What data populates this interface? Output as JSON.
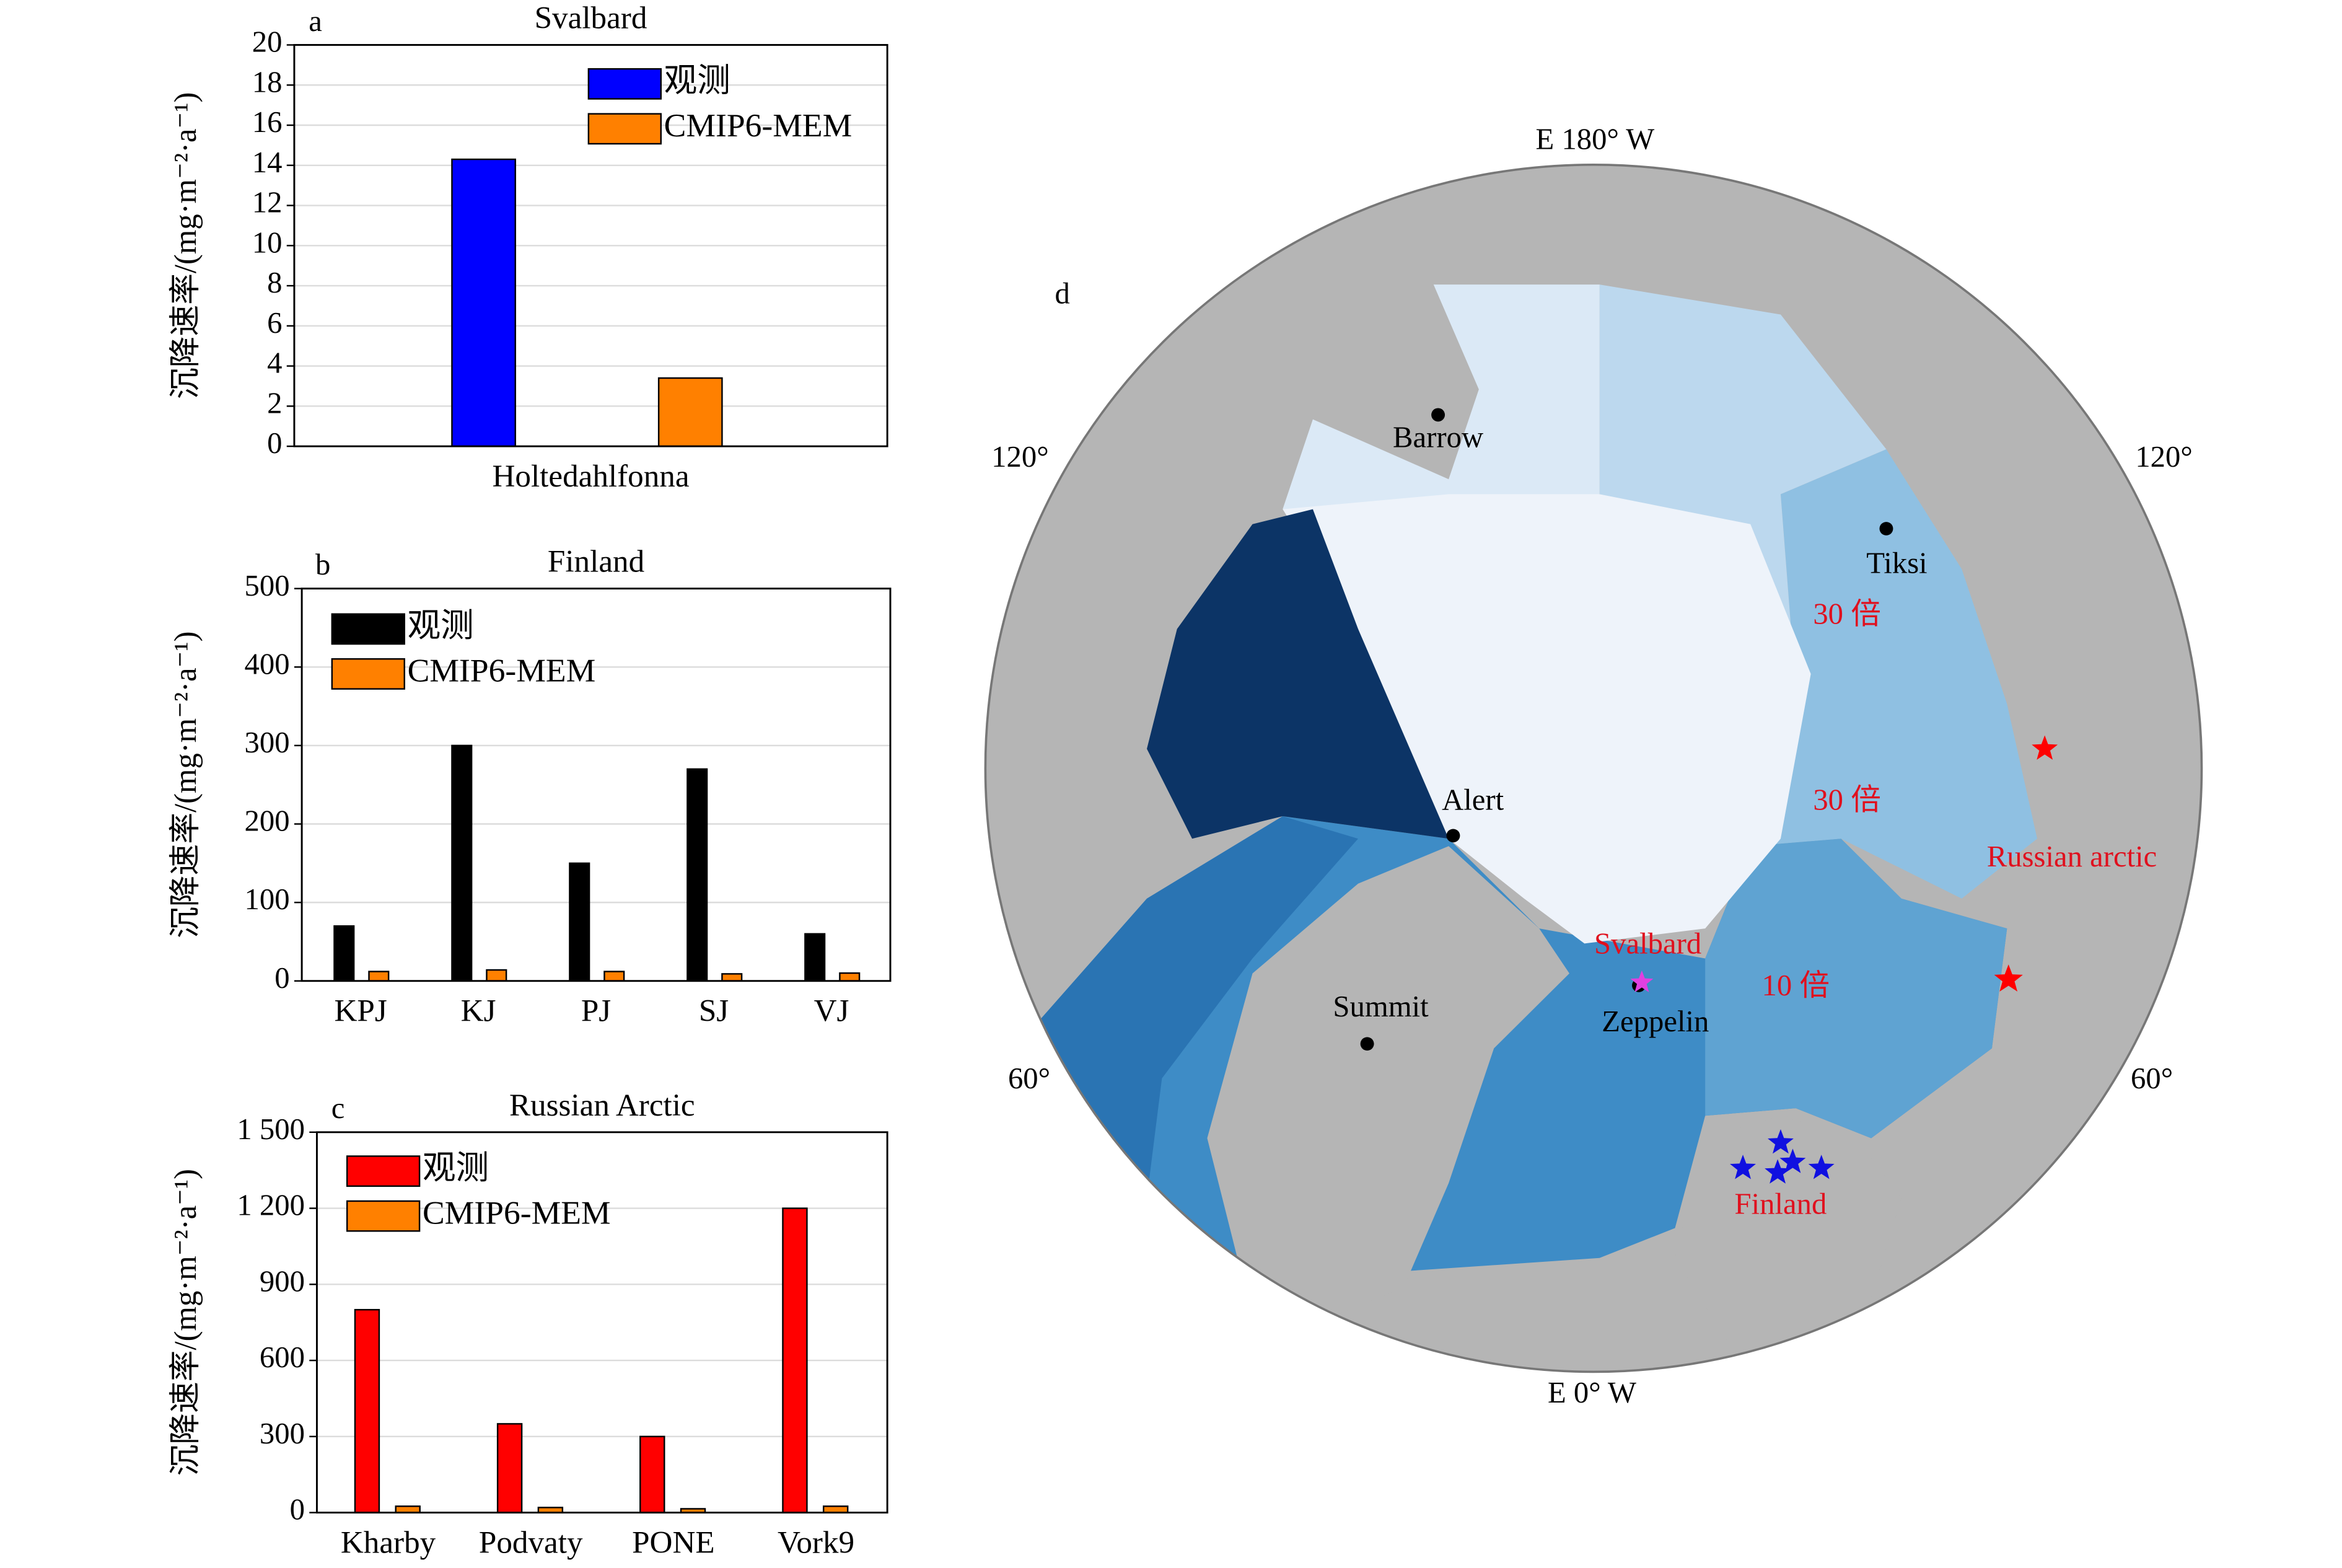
{
  "chart_data": [
    {
      "type": "bar",
      "panel": "a",
      "title": "Svalbard",
      "ylabel": "沉降速率/(mg·m⁻²·a⁻¹)",
      "categories": [
        "Holtedahlfonna"
      ],
      "series": [
        {
          "name": "观测",
          "color": "#0000ff",
          "values": [
            14.3
          ]
        },
        {
          "name": "CMIP6-MEM",
          "color": "#ff8000",
          "values": [
            3.4
          ]
        }
      ],
      "ylim": [
        0,
        20
      ],
      "yticks": [
        0,
        2,
        4,
        6,
        8,
        10,
        12,
        14,
        16,
        18,
        20
      ],
      "grid": true
    },
    {
      "type": "bar",
      "panel": "b",
      "title": "Finland",
      "ylabel": "沉降速率/(mg·m⁻²·a⁻¹)",
      "categories": [
        "KPJ",
        "KJ",
        "PJ",
        "SJ",
        "VJ"
      ],
      "series": [
        {
          "name": "观测",
          "color": "#000000",
          "values": [
            70,
            300,
            150,
            270,
            60
          ]
        },
        {
          "name": "CMIP6-MEM",
          "color": "#ff8000",
          "values": [
            12,
            14,
            12,
            9,
            10
          ]
        }
      ],
      "ylim": [
        0,
        500
      ],
      "yticks": [
        0,
        100,
        200,
        300,
        400,
        500
      ],
      "grid": true
    },
    {
      "type": "bar",
      "panel": "c",
      "title": "Russian Arctic",
      "ylabel": "沉降速率/(mg·m⁻²·a⁻¹)",
      "categories": [
        "Kharby",
        "Podvaty",
        "PONE",
        "Vork9"
      ],
      "series": [
        {
          "name": "观测",
          "color": "#ff0000",
          "values": [
            800,
            350,
            300,
            1200
          ]
        },
        {
          "name": "CMIP6-MEM",
          "color": "#ff8000",
          "values": [
            25,
            20,
            15,
            25
          ]
        }
      ],
      "ylim": [
        0,
        1500
      ],
      "yticks": [
        0,
        300,
        600,
        900,
        {
          "value": 1200,
          "label": "1 200"
        },
        {
          "value": 1500,
          "label": "1 500"
        }
      ],
      "grid": true
    }
  ],
  "map": {
    "panel": "d",
    "top": "E 180° W",
    "bottom": "E 0° W",
    "left_upper": "120°",
    "right_upper": "120°",
    "left_lower": "60°",
    "right_lower": "60°",
    "stations": [
      "Barrow",
      "Tiksi",
      "Alert",
      "Summit",
      "Zeppelin"
    ],
    "regions": [
      "30 倍",
      "30 倍",
      "10 倍"
    ],
    "sites": [
      "Svalbard",
      "Russian arctic",
      "Finland"
    ]
  }
}
